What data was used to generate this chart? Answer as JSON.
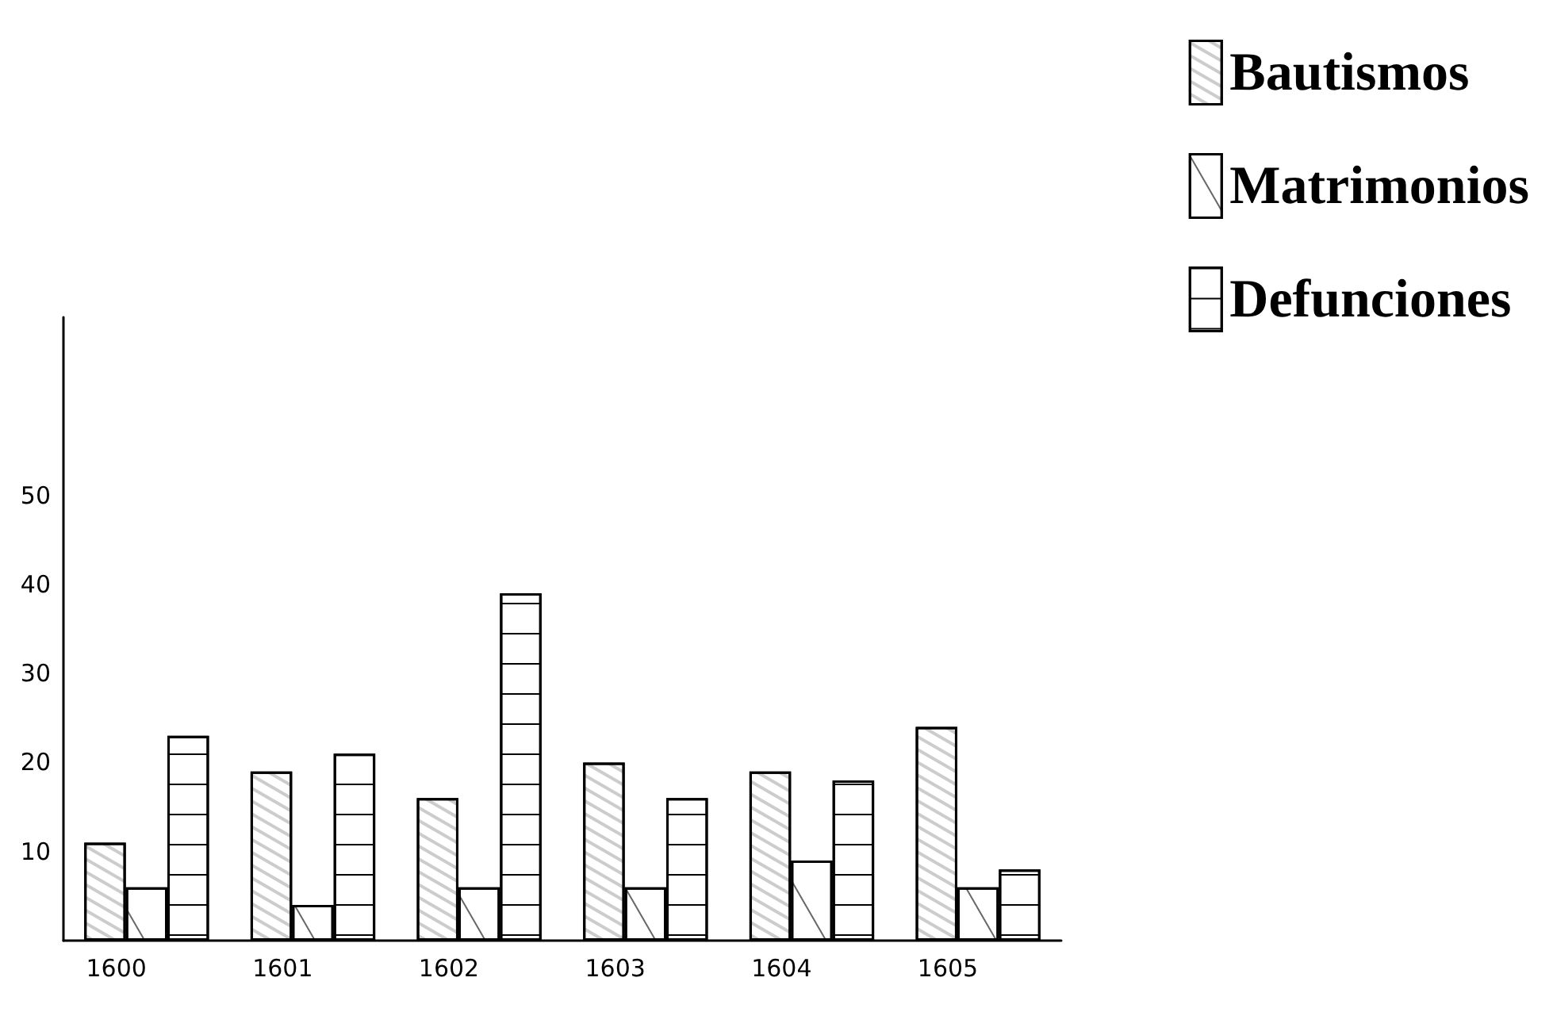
{
  "chart_data": {
    "type": "bar",
    "categories": [
      "1600",
      "1601",
      "1602",
      "1603",
      "1604",
      "1605"
    ],
    "series": [
      {
        "name": "Bautismos",
        "color": "#ffffff",
        "values": [
          11,
          19,
          16,
          20,
          19,
          24
        ]
      },
      {
        "name": "Matrimonios",
        "color": "#ffffff",
        "values": [
          6,
          4,
          6,
          6,
          9,
          6
        ]
      },
      {
        "name": "Defunciones",
        "color": "#ffffff",
        "values": [
          23,
          21,
          39,
          16,
          18,
          8
        ]
      }
    ],
    "ylim": [
      0,
      70
    ],
    "yticks": [
      10,
      20,
      30,
      40,
      50
    ],
    "grid": false,
    "legend": "top right"
  }
}
